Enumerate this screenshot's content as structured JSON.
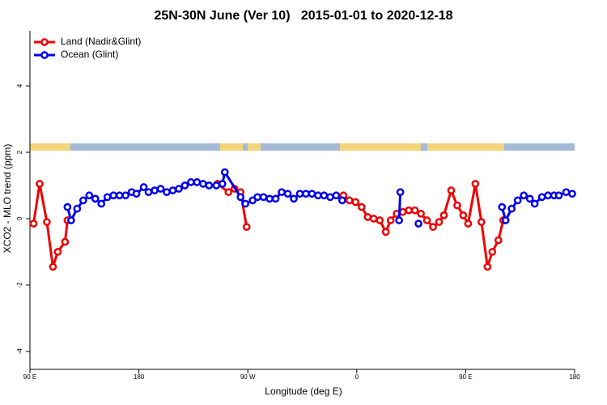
{
  "chart_data": {
    "type": "line",
    "title": "25N-30N June (Ver 10)   2015-01-01 to 2020-12-18",
    "x_label": "Longitude (deg E)",
    "y_label": "XCO2 - MLO trend (ppm)",
    "xlim": [
      90,
      540
    ],
    "xticks": [
      {
        "value": 90,
        "label": "90 E"
      },
      180,
      {
        "value": 270,
        "label": "90 W"
      },
      {
        "value": 360,
        "label": "0"
      },
      {
        "value": 450,
        "label": "90 E"
      },
      {
        "value": 540,
        "label": "180"
      }
    ],
    "ylim": [
      -4.54,
      5.66
    ],
    "yticks": [
      -4,
      -2,
      0,
      2,
      4
    ],
    "legend": "top-left",
    "series": [
      {
        "name": "Land (Nadir&Glint)",
        "color": "#ee0000",
        "x": [
          93,
          98,
          104,
          109,
          113,
          119,
          121,
          null,
          245,
          254,
          259,
          264,
          269,
          null,
          349,
          354,
          359,
          364,
          369,
          374,
          379,
          384,
          388,
          393,
          398,
          403,
          408,
          413,
          418,
          423,
          428,
          432,
          438,
          443,
          448,
          452,
          458,
          463,
          468,
          472,
          477,
          481
        ],
        "values": [
          -0.15,
          1.05,
          -0.1,
          -1.45,
          -1.0,
          -0.7,
          -0.05,
          null,
          1.05,
          0.8,
          0.9,
          0.8,
          -0.25,
          null,
          0.7,
          0.55,
          0.5,
          0.35,
          0.05,
          0.0,
          -0.05,
          -0.4,
          -0.05,
          0.15,
          0.2,
          0.25,
          0.25,
          0.15,
          -0.05,
          -0.25,
          -0.1,
          0.1,
          0.85,
          0.4,
          0.1,
          -0.15,
          1.05,
          -0.1,
          -1.45,
          -1.0,
          -0.65,
          -0.05
        ]
      },
      {
        "name": "Ocean (Glint)",
        "color": "#0000ee",
        "x": [
          121,
          124,
          129,
          134,
          139,
          144,
          149,
          154,
          159,
          164,
          169,
          174,
          178,
          184,
          188,
          193,
          198,
          203,
          208,
          213,
          218,
          223,
          228,
          233,
          238,
          244,
          249,
          251,
          264,
          268,
          274,
          278,
          283,
          288,
          293,
          298,
          303,
          308,
          313,
          318,
          323,
          328,
          333,
          338,
          343,
          348,
          null,
          395,
          396,
          null,
          411,
          null,
          480,
          483,
          488,
          493,
          498,
          503,
          507,
          513,
          518,
          523,
          527,
          533,
          538
        ],
        "values": [
          0.35,
          -0.05,
          0.3,
          0.55,
          0.7,
          0.6,
          0.45,
          0.65,
          0.7,
          0.7,
          0.7,
          0.8,
          0.75,
          0.95,
          0.8,
          0.85,
          0.9,
          0.8,
          0.85,
          0.9,
          1.0,
          1.1,
          1.1,
          1.05,
          1.0,
          1.0,
          1.05,
          1.4,
          0.65,
          0.45,
          0.55,
          0.65,
          0.65,
          0.6,
          0.6,
          0.8,
          0.75,
          0.6,
          0.75,
          0.75,
          0.75,
          0.7,
          0.7,
          0.65,
          0.7,
          0.55,
          null,
          -0.05,
          0.8,
          null,
          -0.15,
          null,
          0.35,
          -0.05,
          0.3,
          0.55,
          0.7,
          0.6,
          0.45,
          0.65,
          0.7,
          0.7,
          0.7,
          0.8,
          0.75
        ]
      }
    ]
  }
}
